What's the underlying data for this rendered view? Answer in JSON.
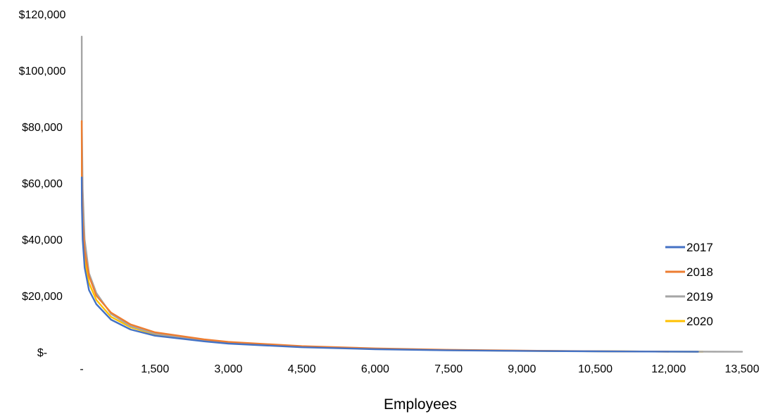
{
  "chart_data": {
    "type": "line",
    "title": "",
    "xlabel": "Employees",
    "ylabel": "",
    "xlim": [
      0,
      13500
    ],
    "ylim": [
      0,
      120000
    ],
    "x_ticks": [
      "-",
      "1,500",
      "3,000",
      "4,500",
      "6,000",
      "7,500",
      "9,000",
      "10,500",
      "12,000",
      "13,500"
    ],
    "y_ticks": [
      "$-",
      "$20,000",
      "$40,000",
      "$60,000",
      "$80,000",
      "$100,000",
      "$120,000"
    ],
    "grid": false,
    "legend_position": "right",
    "series": [
      {
        "name": "2017",
        "color": "#4472C4",
        "x": [
          1,
          5,
          20,
          60,
          150,
          300,
          600,
          1000,
          1500,
          2500,
          3000,
          4500,
          6000,
          7500,
          9000,
          10500,
          12000,
          12600
        ],
        "y": [
          62000,
          52000,
          40000,
          30000,
          22000,
          17000,
          11500,
          8000,
          5800,
          3800,
          3000,
          1700,
          1000,
          600,
          400,
          250,
          150,
          100
        ]
      },
      {
        "name": "2018",
        "color": "#ED7D31",
        "x": [
          1,
          5,
          20,
          60,
          150,
          300,
          600,
          1000,
          1500,
          2500,
          3000,
          4500,
          6000,
          7500,
          9000,
          10500,
          12000
        ],
        "y": [
          82000,
          62000,
          47000,
          36000,
          27000,
          20000,
          14000,
          9800,
          7000,
          4500,
          3600,
          2100,
          1300,
          800,
          500,
          300,
          150
        ]
      },
      {
        "name": "2019",
        "color": "#A5A5A5",
        "x": [
          1,
          5,
          20,
          60,
          150,
          300,
          600,
          1000,
          1500,
          2500,
          3000,
          4500,
          6000,
          7500,
          9000,
          10500,
          12000,
          13500
        ],
        "y": [
          112000,
          80000,
          58000,
          40000,
          28000,
          21000,
          13500,
          9200,
          6500,
          4200,
          3300,
          1900,
          1150,
          700,
          450,
          280,
          170,
          100
        ]
      },
      {
        "name": "2020",
        "color": "#FFC000",
        "x": [
          1,
          5,
          20,
          60,
          150,
          300,
          600,
          1000,
          1500,
          2500,
          3000,
          4500,
          6000,
          7500,
          9000,
          10500,
          12000,
          12700
        ],
        "y": [
          82000,
          60000,
          45000,
          33000,
          24500,
          18500,
          12500,
          8800,
          6300,
          4000,
          3200,
          1850,
          1100,
          680,
          430,
          270,
          160,
          120
        ]
      }
    ]
  }
}
